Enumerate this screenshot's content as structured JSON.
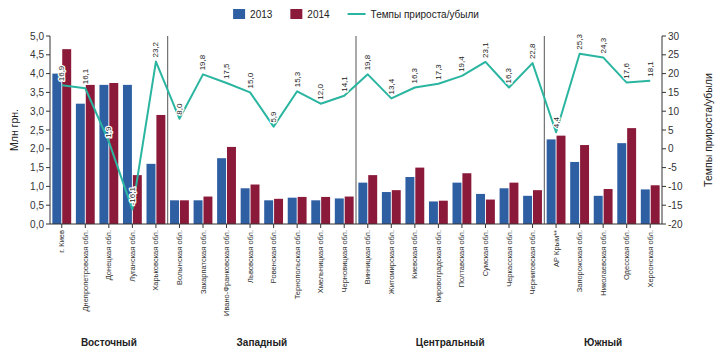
{
  "chart_data": {
    "type": "bar",
    "categories": [
      "г. Киев",
      "Днепропетровская обл.",
      "Донецкая обл.",
      "Луганская обл.",
      "Харьковская обл.",
      "Волынская обл.",
      "Закарпатская обл.",
      "Ивано-Франковская обл.",
      "Львовская обл.",
      "Ровенская обл.",
      "Тернопольская обл.",
      "Хмельницкая обл.",
      "Черновицкая обл.",
      "Винницкая обл.",
      "Житомирская обл.",
      "Киевская обл.",
      "Кировоградская обл.",
      "Полтавская обл.",
      "Сумская обл.",
      "Черкасская обл.",
      "Черниговская обл.",
      "АР Крым**",
      "Запорожская обл.",
      "Николаевская обл.",
      "Одесская обл.",
      "Херсонская обл."
    ],
    "series": [
      {
        "name": "2013",
        "color": "#2e5fa3",
        "values": [
          4.0,
          3.2,
          3.7,
          3.7,
          1.6,
          0.63,
          0.63,
          1.75,
          0.95,
          0.63,
          0.7,
          0.63,
          0.68,
          1.1,
          0.85,
          1.25,
          0.6,
          1.1,
          0.8,
          0.95,
          0.75,
          2.25,
          1.65,
          0.75,
          2.15,
          0.92
        ]
      },
      {
        "name": "2014",
        "color": "#8b1a3a",
        "values": [
          4.65,
          3.7,
          3.75,
          1.3,
          2.9,
          0.63,
          0.73,
          2.05,
          1.05,
          0.67,
          0.72,
          0.72,
          0.73,
          1.3,
          0.9,
          1.5,
          0.62,
          1.35,
          0.65,
          1.1,
          0.9,
          2.35,
          2.1,
          0.93,
          2.55,
          1.03
        ]
      },
      {
        "name": "Темпы прироста/убыли",
        "type": "line",
        "axis": "y2",
        "color": "#2ab5a0",
        "data_labels": true,
        "values": [
          16.9,
          16.1,
          1.9,
          -16.1,
          23.2,
          8.0,
          19.8,
          17.5,
          15.0,
          5.9,
          15.3,
          12.0,
          14.1,
          19.8,
          13.4,
          16.3,
          17.3,
          19.4,
          23.1,
          16.3,
          22.8,
          4.4,
          25.3,
          24.3,
          17.6,
          18.1
        ],
        "value_labels": [
          "16,9",
          "16,1",
          "1,9",
          "-16,1",
          "23,2",
          "8,0",
          "19,8",
          "17,5",
          "15,0",
          "5,9",
          "15,3",
          "12,0",
          "14,1",
          "19,8",
          "13,4",
          "16,3",
          "17,3",
          "19,4",
          "23,1",
          "16,3",
          "22,8",
          "4,4",
          "25,3",
          "24,3",
          "17,6",
          "18,1"
        ]
      }
    ],
    "groups": [
      {
        "label": "Восточный",
        "first": "г. Киев",
        "last": "Харьковская обл."
      },
      {
        "label": "Западный",
        "first": "Волынская обл.",
        "last": "Черновицкая обл."
      },
      {
        "label": "Центральный",
        "first": "Винницкая обл.",
        "last": "Черниговская обл."
      },
      {
        "label": "Южный",
        "first": "АР Крым**",
        "last": "Херсонская обл."
      }
    ],
    "ylabel": "Млн грн.",
    "y2label": "Темпы прироста/убыли",
    "ylim": [
      0,
      5.0
    ],
    "yticks": [
      {
        "value": 0.0,
        "label": "0,0"
      },
      {
        "value": 0.5,
        "label": "0,5"
      },
      {
        "value": 1.0,
        "label": "1,0"
      },
      {
        "value": 1.5,
        "label": "1,5"
      },
      {
        "value": 2.0,
        "label": "2,0"
      },
      {
        "value": 2.5,
        "label": "2,5"
      },
      {
        "value": 3.0,
        "label": "3,0"
      },
      {
        "value": 3.5,
        "label": "3,5"
      },
      {
        "value": 4.0,
        "label": "4,0"
      },
      {
        "value": 4.5,
        "label": "4,5"
      },
      {
        "value": 5.0,
        "label": "5,0"
      }
    ],
    "y2lim": [
      -20,
      30
    ],
    "y2ticks": [
      -20,
      -15,
      -10,
      -5,
      0,
      5,
      10,
      15,
      20,
      25,
      30
    ],
    "legend": "top",
    "grid": false
  }
}
